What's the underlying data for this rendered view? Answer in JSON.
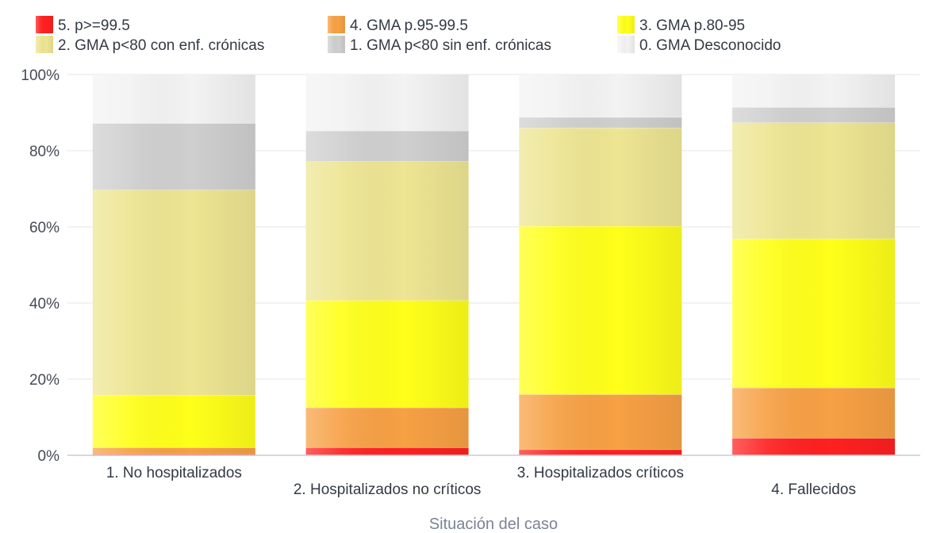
{
  "chart_data": {
    "type": "bar",
    "stacked": true,
    "normalized": true,
    "xlabel": "Situación del caso",
    "ylabel": "",
    "ylim": [
      0,
      100
    ],
    "yticks": [
      "0%",
      "20%",
      "40%",
      "60%",
      "80%",
      "100%"
    ],
    "grid": true,
    "legend_position": "top",
    "categories": [
      "1. No hospitalizados",
      "2. Hospitalizados no críticos",
      "3. Hospitalizados críticos",
      "4. Fallecidos"
    ],
    "series": [
      {
        "name": "5. p>=99.5",
        "color": "#ff2020",
        "values": [
          0.3,
          2.0,
          1.5,
          4.5
        ]
      },
      {
        "name": "4. GMA p.95-99.5",
        "color": "#f7a044",
        "values": [
          1.7,
          10.5,
          14.5,
          13.2
        ]
      },
      {
        "name": "3. GMA p.80-95",
        "color": "#ffff1a",
        "values": [
          13.8,
          28.2,
          44.2,
          39.2
        ]
      },
      {
        "name": "2. GMA p<80 con enf. crónicas",
        "color": "#ede592",
        "values": [
          53.9,
          36.5,
          25.8,
          30.5
        ]
      },
      {
        "name": "1. GMA p<80 sin enf. crónicas",
        "color": "#cfcfcf",
        "values": [
          17.5,
          8.0,
          2.8,
          4.0
        ]
      },
      {
        "name": "0. GMA Desconocido",
        "color": "#f3f3f3",
        "values": [
          12.8,
          14.8,
          11.2,
          8.6
        ]
      }
    ]
  }
}
